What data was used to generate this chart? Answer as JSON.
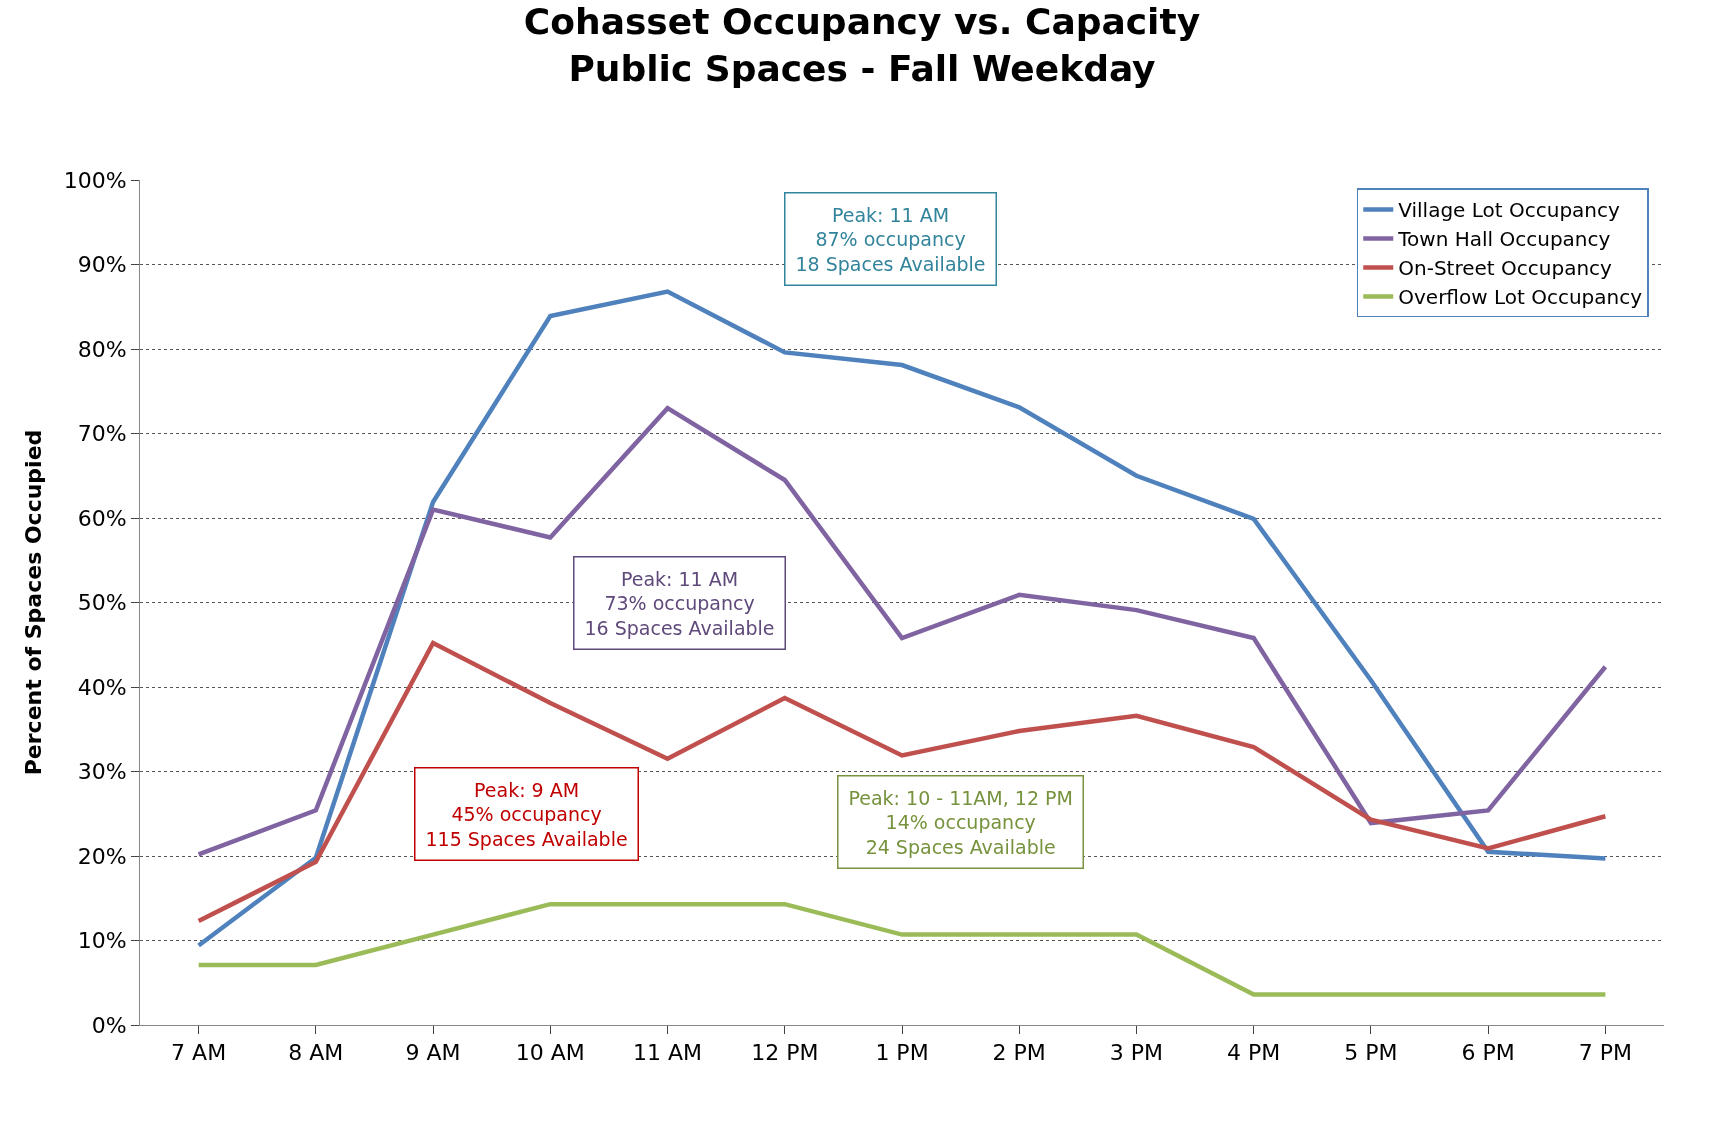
{
  "chart_data": {
    "type": "line",
    "title": "Cohasset Occupancy vs. Capacity\nPublic Spaces - Fall Weekday",
    "ylabel": "Percent of Spaces Occupied",
    "categories": [
      "7 AM",
      "8 AM",
      "9 AM",
      "10 AM",
      "11 AM",
      "12 PM",
      "1 PM",
      "2 PM",
      "3 PM",
      "4 PM",
      "5 PM",
      "6 PM",
      "7 PM"
    ],
    "series": [
      {
        "name": "Village Lot Occupancy",
        "color": "#4f81bd",
        "values": [
          9.4,
          19.8,
          61.9,
          83.9,
          86.8,
          79.6,
          78.1,
          73.1,
          65,
          59.9,
          40.8,
          20.5,
          19.7
        ]
      },
      {
        "name": "Town Hall Occupancy",
        "color": "#8064a2",
        "values": [
          20.2,
          25.4,
          61,
          57.7,
          73,
          64.5,
          45.8,
          50.9,
          49.1,
          45.8,
          23.9,
          25.4,
          42.4
        ]
      },
      {
        "name": "On-Street Occupancy",
        "color": "#c0504d",
        "values": [
          12.3,
          19.3,
          45.2,
          38.1,
          31.5,
          38.7,
          31.9,
          34.8,
          36.6,
          32.9,
          24.3,
          20.9,
          24.7
        ]
      },
      {
        "name": "Overflow Lot Occupancy",
        "color": "#9bbb59",
        "values": [
          7.1,
          7.1,
          10.7,
          14.3,
          14.3,
          14.3,
          10.7,
          10.7,
          10.7,
          3.6,
          3.6,
          3.6,
          3.6
        ]
      }
    ],
    "annotations": [
      "Peak: 11 AM\n87% occupancy\n18 Spaces Available",
      "Peak: 11 AM\n73% occupancy\n16 Spaces Available",
      "Peak: 9 AM\n45% occupancy\n115 Spaces Available",
      "Peak: 10 - 11AM, 12 PM\n14% occupancy\n24 Spaces Available"
    ],
    "ylim": [
      0,
      100
    ],
    "yticks": [
      {
        "value": 0,
        "label": "0%"
      },
      {
        "value": 10,
        "label": "10%"
      },
      {
        "value": 20,
        "label": "20%"
      },
      {
        "value": 30,
        "label": "30%"
      },
      {
        "value": 40,
        "label": "40%"
      },
      {
        "value": 50,
        "label": "50%"
      },
      {
        "value": 60,
        "label": "60%"
      },
      {
        "value": 70,
        "label": "70%"
      },
      {
        "value": 80,
        "label": "80%"
      },
      {
        "value": 90,
        "label": "90%"
      },
      {
        "value": 100,
        "label": "100%"
      }
    ],
    "grid": "y",
    "legend": "top right",
    "marker": "none",
    "line_style": "solid"
  }
}
